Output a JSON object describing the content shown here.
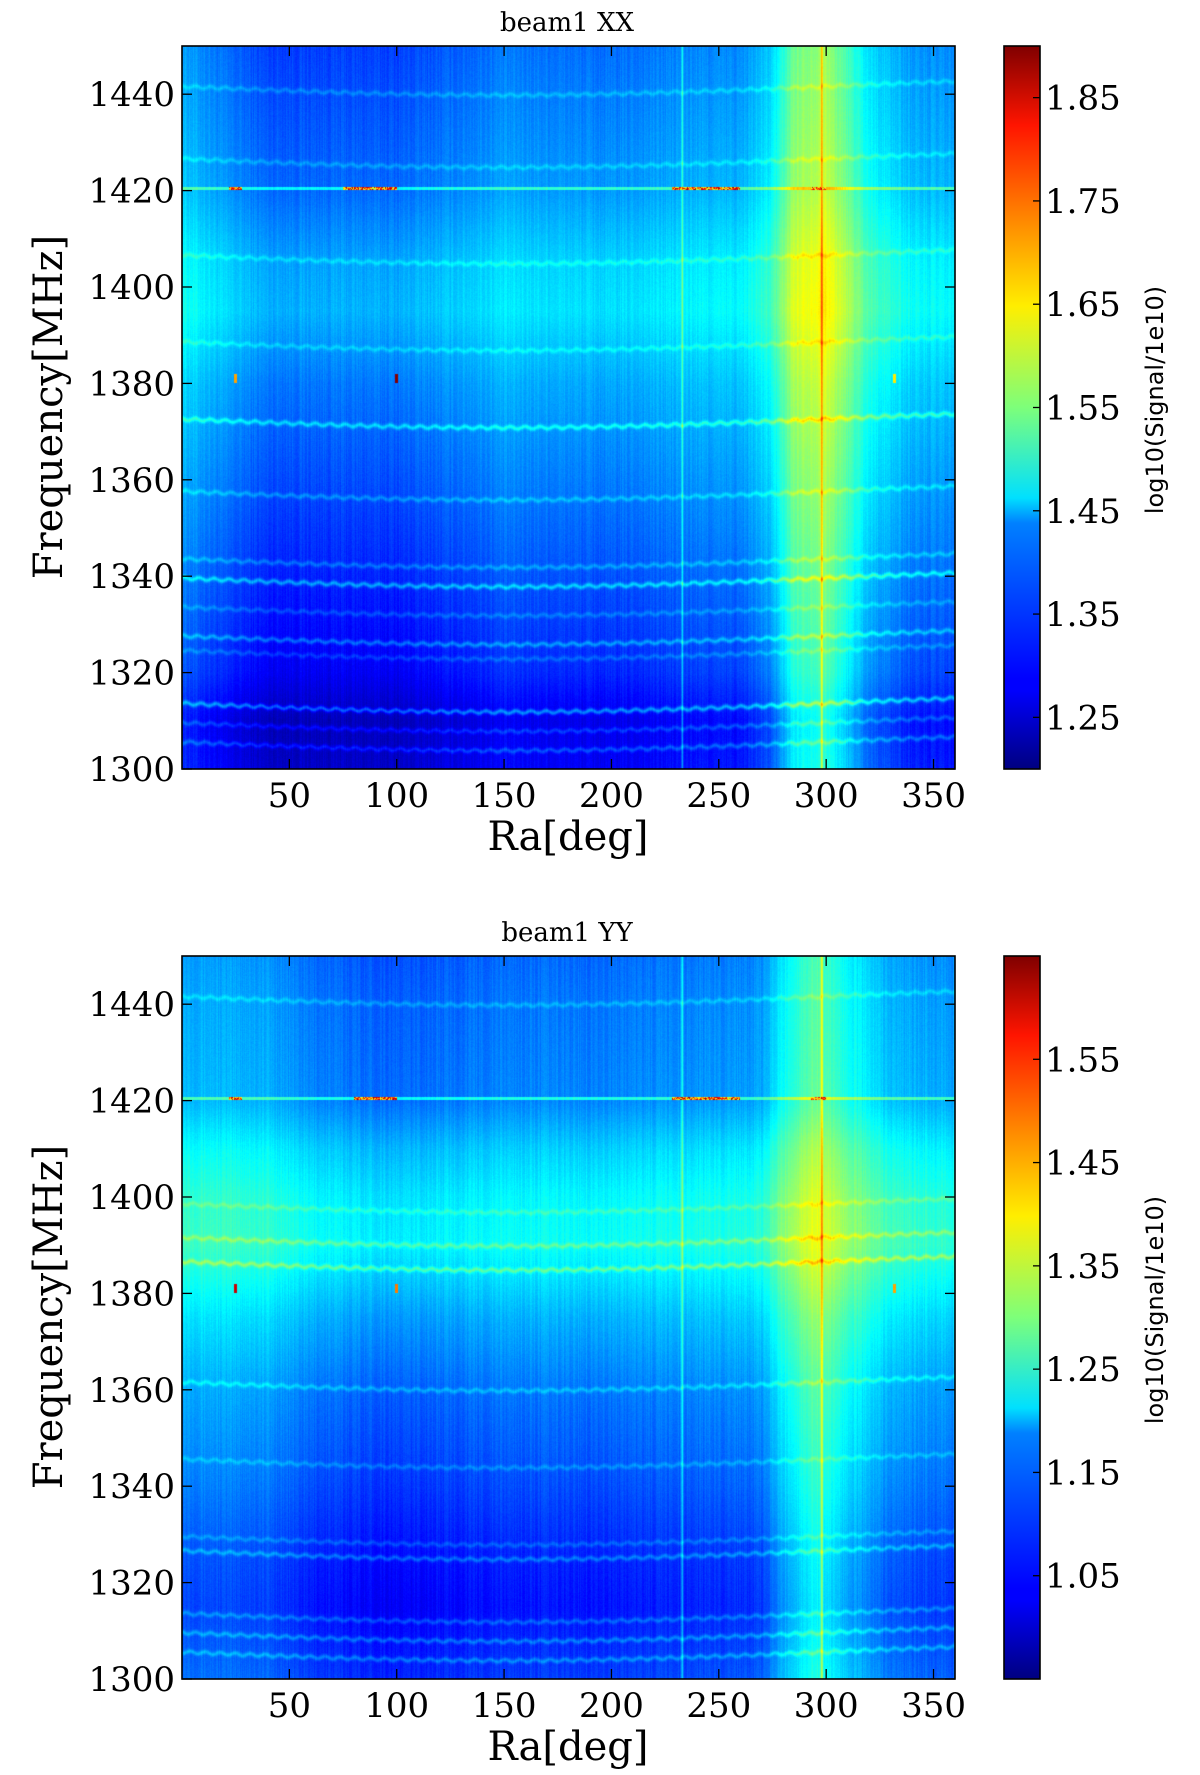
{
  "chart_data": [
    {
      "type": "heatmap",
      "title": "beam1 XX",
      "xlabel": "Ra[deg]",
      "ylabel": "Frequency[MHz]",
      "colorbar_label": "log10(Signal/1e10)",
      "colormap": "jet",
      "xlim": [
        0,
        360
      ],
      "ylim": [
        1300,
        1450
      ],
      "xticks": [
        50,
        100,
        150,
        200,
        250,
        300,
        350
      ],
      "yticks": [
        1300,
        1320,
        1340,
        1360,
        1380,
        1400,
        1420,
        1440
      ],
      "clim": [
        1.2,
        1.9
      ],
      "cbar_ticks": [
        1.25,
        1.35,
        1.45,
        1.55,
        1.65,
        1.75,
        1.85
      ],
      "base_value": 1.4,
      "frequency_profile": [
        [
          1300,
          1.3
        ],
        [
          1310,
          1.29
        ],
        [
          1320,
          1.33
        ],
        [
          1340,
          1.36
        ],
        [
          1360,
          1.39
        ],
        [
          1380,
          1.42
        ],
        [
          1395,
          1.46
        ],
        [
          1405,
          1.45
        ],
        [
          1420,
          1.41
        ],
        [
          1440,
          1.39
        ],
        [
          1450,
          1.38
        ]
      ],
      "ra_profile": [
        [
          0,
          0.02
        ],
        [
          20,
          -0.02
        ],
        [
          40,
          -0.05
        ],
        [
          60,
          -0.05
        ],
        [
          100,
          -0.05
        ],
        [
          150,
          -0.01
        ],
        [
          200,
          -0.02
        ],
        [
          240,
          0.0
        ],
        [
          260,
          0.0
        ],
        [
          275,
          0.05
        ],
        [
          285,
          0.16
        ],
        [
          300,
          0.19
        ],
        [
          320,
          0.06
        ],
        [
          340,
          0.01
        ],
        [
          360,
          0.0
        ]
      ],
      "line_features": [
        {
          "freq": 1305,
          "amp": 0.06
        },
        {
          "freq": 1309,
          "amp": 0.05
        },
        {
          "freq": 1313,
          "amp": 0.1
        },
        {
          "freq": 1324,
          "amp": 0.04
        },
        {
          "freq": 1327,
          "amp": 0.07
        },
        {
          "freq": 1333,
          "amp": 0.04
        },
        {
          "freq": 1339,
          "amp": 0.09
        },
        {
          "freq": 1343,
          "amp": 0.05
        },
        {
          "freq": 1357,
          "amp": 0.05
        },
        {
          "freq": 1372,
          "amp": 0.08
        },
        {
          "freq": 1388,
          "amp": 0.04
        },
        {
          "freq": 1406,
          "amp": 0.04
        },
        {
          "freq": 1426,
          "amp": 0.04
        },
        {
          "freq": 1441,
          "amp": 0.04
        }
      ],
      "rfi_line": {
        "freq": 1420.5,
        "hot_ra": [
          [
            22,
            28
          ],
          [
            75,
            100
          ],
          [
            228,
            260
          ],
          [
            293,
            300
          ]
        ]
      },
      "vertical_stripes": [
        {
          "ra": 233,
          "amp": 0.09
        },
        {
          "ra": 298,
          "amp": 0.14
        }
      ],
      "hot_spots": [
        {
          "ra": 100,
          "freq": 1381,
          "value": 1.9
        },
        {
          "ra": 25,
          "freq": 1381,
          "value": 1.7
        },
        {
          "ra": 332,
          "freq": 1381,
          "value": 1.65
        }
      ]
    },
    {
      "type": "heatmap",
      "title": "beam1 YY",
      "xlabel": "Ra[deg]",
      "ylabel": "Frequency[MHz]",
      "colorbar_label": "log10(Signal/1e10)",
      "colormap": "jet",
      "xlim": [
        0,
        360
      ],
      "ylim": [
        1300,
        1450
      ],
      "xticks": [
        50,
        100,
        150,
        200,
        250,
        300,
        350
      ],
      "yticks": [
        1300,
        1320,
        1340,
        1360,
        1380,
        1400,
        1420,
        1440
      ],
      "clim": [
        0.95,
        1.65
      ],
      "cbar_ticks": [
        1.05,
        1.15,
        1.25,
        1.35,
        1.45,
        1.55
      ],
      "base_value": 1.14,
      "frequency_profile": [
        [
          1300,
          1.1
        ],
        [
          1315,
          1.07
        ],
        [
          1325,
          1.08
        ],
        [
          1340,
          1.11
        ],
        [
          1360,
          1.14
        ],
        [
          1375,
          1.18
        ],
        [
          1390,
          1.24
        ],
        [
          1400,
          1.23
        ],
        [
          1410,
          1.2
        ],
        [
          1420,
          1.15
        ],
        [
          1440,
          1.14
        ],
        [
          1450,
          1.13
        ]
      ],
      "ra_profile": [
        [
          0,
          0.02
        ],
        [
          40,
          0.01
        ],
        [
          60,
          -0.02
        ],
        [
          100,
          -0.04
        ],
        [
          150,
          -0.02
        ],
        [
          200,
          -0.02
        ],
        [
          240,
          -0.01
        ],
        [
          270,
          0.0
        ],
        [
          280,
          0.07
        ],
        [
          295,
          0.14
        ],
        [
          310,
          0.08
        ],
        [
          330,
          0.02
        ],
        [
          360,
          0.0
        ]
      ],
      "line_features": [
        {
          "freq": 1305,
          "amp": 0.06
        },
        {
          "freq": 1309,
          "amp": 0.06
        },
        {
          "freq": 1313,
          "amp": 0.05
        },
        {
          "freq": 1326,
          "amp": 0.06
        },
        {
          "freq": 1329,
          "amp": 0.04
        },
        {
          "freq": 1345,
          "amp": 0.04
        },
        {
          "freq": 1361,
          "amp": 0.05
        },
        {
          "freq": 1386,
          "amp": 0.08
        },
        {
          "freq": 1391,
          "amp": 0.06
        },
        {
          "freq": 1398,
          "amp": 0.04
        },
        {
          "freq": 1441,
          "amp": 0.04
        }
      ],
      "rfi_line": {
        "freq": 1420.5,
        "hot_ra": [
          [
            22,
            28
          ],
          [
            80,
            100
          ],
          [
            228,
            260
          ],
          [
            293,
            300
          ]
        ]
      },
      "vertical_stripes": [
        {
          "ra": 233,
          "amp": 0.09
        },
        {
          "ra": 298,
          "amp": 0.12
        }
      ],
      "hot_spots": [
        {
          "ra": 25,
          "freq": 1381,
          "value": 1.6
        },
        {
          "ra": 100,
          "freq": 1381,
          "value": 1.48
        },
        {
          "ra": 332,
          "freq": 1381,
          "value": 1.45
        }
      ]
    }
  ]
}
